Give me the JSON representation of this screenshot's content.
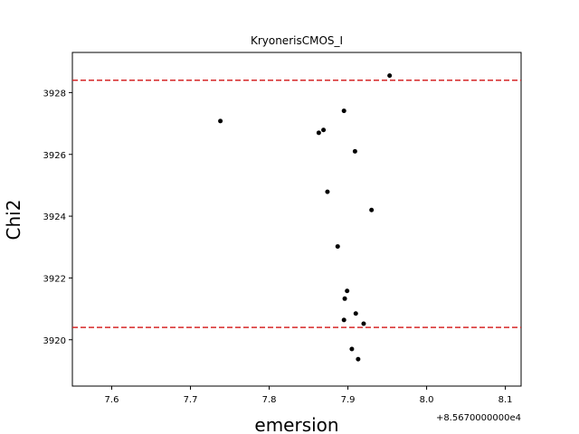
{
  "chart_data": {
    "type": "scatter",
    "title": "KryonerisCMOS_I",
    "xlabel": "emersion",
    "ylabel": "Chi2",
    "x_offset_label": "+8.5670000000e4",
    "xlim": [
      7.55,
      8.12
    ],
    "ylim": [
      3918.5,
      3929.3
    ],
    "x_ticks": [
      7.6,
      7.7,
      7.8,
      7.9,
      8.0,
      8.1
    ],
    "x_tick_labels": [
      "7.6",
      "7.7",
      "7.8",
      "7.9",
      "8.0",
      "8.1"
    ],
    "y_ticks": [
      3920,
      3922,
      3924,
      3926,
      3928
    ],
    "y_tick_labels": [
      "3920",
      "3922",
      "3924",
      "3926",
      "3928"
    ],
    "grid": false,
    "marker_color": "#000000",
    "reference_line_color": "#d62728",
    "reference_lines_y": [
      3928.4,
      3920.4
    ],
    "points": [
      {
        "x": 7.953,
        "y": 3928.55
      },
      {
        "x": 7.738,
        "y": 3927.08
      },
      {
        "x": 7.895,
        "y": 3927.41
      },
      {
        "x": 7.869,
        "y": 3926.79
      },
      {
        "x": 7.863,
        "y": 3926.7
      },
      {
        "x": 7.909,
        "y": 3926.1
      },
      {
        "x": 7.874,
        "y": 3924.79
      },
      {
        "x": 7.93,
        "y": 3924.2
      },
      {
        "x": 7.887,
        "y": 3923.02
      },
      {
        "x": 7.899,
        "y": 3921.58
      },
      {
        "x": 7.896,
        "y": 3921.33
      },
      {
        "x": 7.91,
        "y": 3920.85
      },
      {
        "x": 7.895,
        "y": 3920.64
      },
      {
        "x": 7.92,
        "y": 3920.52
      },
      {
        "x": 7.905,
        "y": 3919.7
      },
      {
        "x": 7.913,
        "y": 3919.37
      }
    ]
  }
}
